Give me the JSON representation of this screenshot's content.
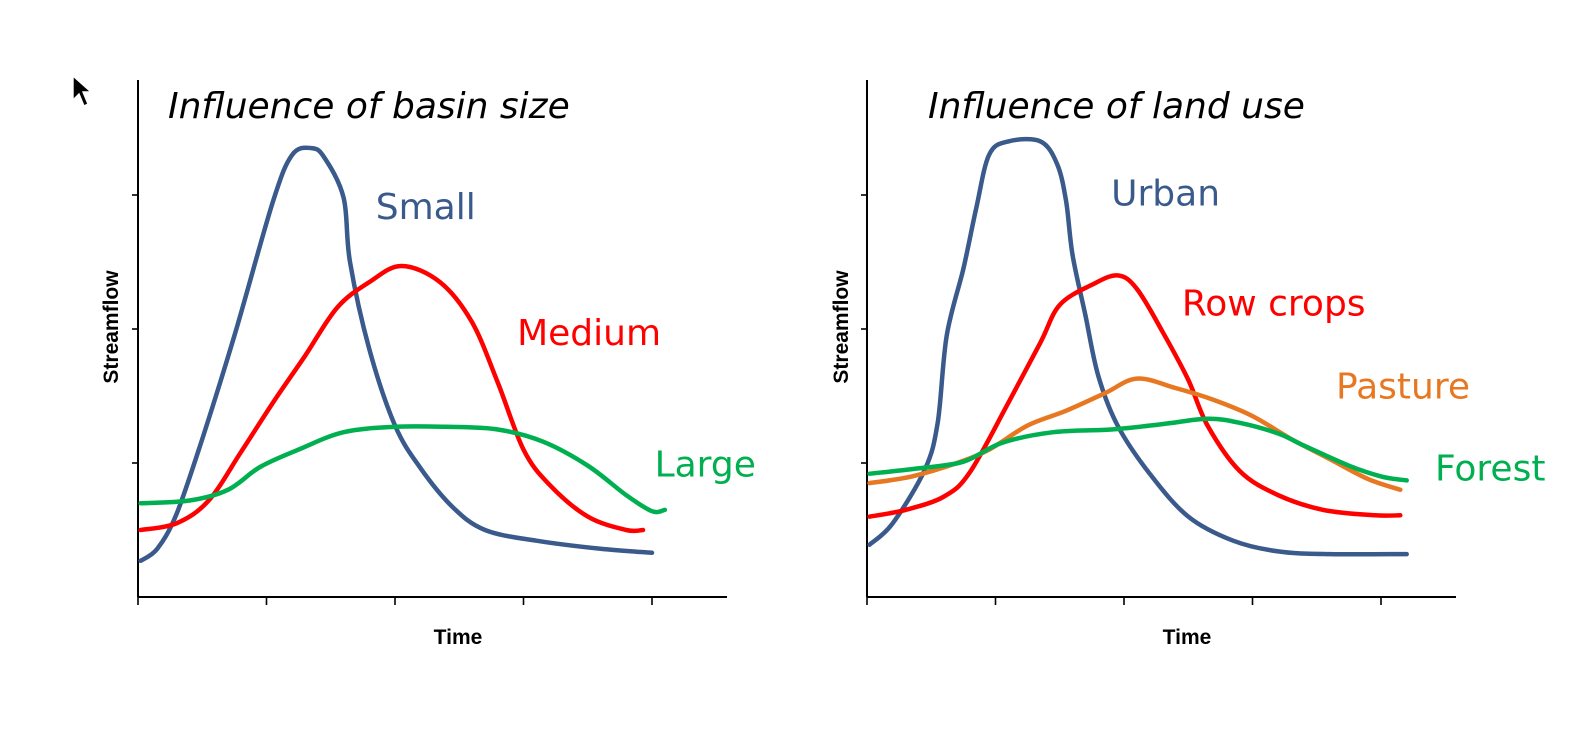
{
  "chart_data": [
    {
      "type": "line",
      "title": "Influence of basin size",
      "xlabel": "Time",
      "ylabel": "Streamflow",
      "xlim": [
        0,
        4.6
      ],
      "ylim": [
        0,
        3.85
      ],
      "grid": false,
      "legend": "inline labels beside curves",
      "x_ticks": [
        0,
        1,
        2,
        3,
        4
      ],
      "y_ticks": [
        1,
        2,
        3
      ],
      "series": [
        {
          "name": "Small",
          "color": "#3A5A8C",
          "label_at": [
            1.85,
            2.82
          ],
          "points": [
            [
              0.02,
              0.27
            ],
            [
              0.15,
              0.36
            ],
            [
              0.3,
              0.62
            ],
            [
              0.5,
              1.18
            ],
            [
              0.75,
              1.95
            ],
            [
              1.05,
              2.95
            ],
            [
              1.2,
              3.3
            ],
            [
              1.35,
              3.35
            ],
            [
              1.45,
              3.28
            ],
            [
              1.6,
              2.98
            ],
            [
              1.65,
              2.5
            ],
            [
              1.8,
              1.85
            ],
            [
              2.0,
              1.28
            ],
            [
              2.2,
              0.96
            ],
            [
              2.45,
              0.67
            ],
            [
              2.7,
              0.5
            ],
            [
              3.1,
              0.42
            ],
            [
              3.6,
              0.36
            ],
            [
              4.0,
              0.33
            ]
          ]
        },
        {
          "name": "Medium",
          "color": "#FF0000",
          "label_at": [
            2.95,
            1.88
          ],
          "points": [
            [
              0.02,
              0.5
            ],
            [
              0.3,
              0.55
            ],
            [
              0.55,
              0.72
            ],
            [
              0.8,
              1.08
            ],
            [
              1.05,
              1.45
            ],
            [
              1.3,
              1.8
            ],
            [
              1.55,
              2.16
            ],
            [
              1.8,
              2.35
            ],
            [
              2.05,
              2.47
            ],
            [
              2.35,
              2.35
            ],
            [
              2.6,
              2.05
            ],
            [
              2.8,
              1.6
            ],
            [
              3.0,
              1.1
            ],
            [
              3.2,
              0.84
            ],
            [
              3.5,
              0.6
            ],
            [
              3.8,
              0.5
            ],
            [
              3.93,
              0.5
            ]
          ]
        },
        {
          "name": "Large",
          "color": "#00B050",
          "label_at": [
            4.02,
            0.9
          ],
          "points": [
            [
              0.02,
              0.7
            ],
            [
              0.4,
              0.72
            ],
            [
              0.7,
              0.8
            ],
            [
              0.95,
              0.97
            ],
            [
              1.25,
              1.1
            ],
            [
              1.6,
              1.23
            ],
            [
              2.0,
              1.27
            ],
            [
              2.4,
              1.27
            ],
            [
              2.8,
              1.25
            ],
            [
              3.15,
              1.16
            ],
            [
              3.5,
              0.98
            ],
            [
              3.8,
              0.76
            ],
            [
              4.0,
              0.64
            ],
            [
              4.1,
              0.65
            ]
          ]
        }
      ]
    },
    {
      "type": "line",
      "title": "Influence of land use",
      "xlabel": "Time",
      "ylabel": "Streamflow",
      "xlim": [
        0,
        4.6
      ],
      "ylim": [
        0,
        3.85
      ],
      "grid": false,
      "legend": "inline labels beside curves",
      "x_ticks": [
        0,
        1,
        2,
        3,
        4
      ],
      "y_ticks": [
        1,
        2,
        3
      ],
      "series": [
        {
          "name": "Urban",
          "color": "#3A5A8C",
          "label_at": [
            1.9,
            2.92
          ],
          "points": [
            [
              0.02,
              0.39
            ],
            [
              0.2,
              0.55
            ],
            [
              0.45,
              0.95
            ],
            [
              0.55,
              1.3
            ],
            [
              0.62,
              1.95
            ],
            [
              0.75,
              2.45
            ],
            [
              0.85,
              2.9
            ],
            [
              0.95,
              3.3
            ],
            [
              1.1,
              3.4
            ],
            [
              1.35,
              3.4
            ],
            [
              1.48,
              3.23
            ],
            [
              1.55,
              2.95
            ],
            [
              1.6,
              2.55
            ],
            [
              1.7,
              2.1
            ],
            [
              1.8,
              1.65
            ],
            [
              1.95,
              1.28
            ],
            [
              2.2,
              0.92
            ],
            [
              2.5,
              0.6
            ],
            [
              2.85,
              0.42
            ],
            [
              3.2,
              0.34
            ],
            [
              3.6,
              0.32
            ],
            [
              4.2,
              0.32
            ]
          ]
        },
        {
          "name": "Row crops",
          "color": "#FF0000",
          "label_at": [
            2.45,
            2.1
          ],
          "points": [
            [
              0.02,
              0.6
            ],
            [
              0.3,
              0.65
            ],
            [
              0.6,
              0.75
            ],
            [
              0.8,
              0.93
            ],
            [
              1.1,
              1.45
            ],
            [
              1.35,
              1.9
            ],
            [
              1.5,
              2.18
            ],
            [
              1.75,
              2.33
            ],
            [
              1.95,
              2.4
            ],
            [
              2.1,
              2.3
            ],
            [
              2.3,
              1.98
            ],
            [
              2.5,
              1.62
            ],
            [
              2.65,
              1.28
            ],
            [
              2.9,
              0.94
            ],
            [
              3.2,
              0.76
            ],
            [
              3.55,
              0.65
            ],
            [
              3.95,
              0.61
            ],
            [
              4.15,
              0.61
            ]
          ]
        },
        {
          "name": "Pasture",
          "color": "#E87722",
          "label_at": [
            3.65,
            1.48
          ],
          "points": [
            [
              0.02,
              0.85
            ],
            [
              0.35,
              0.9
            ],
            [
              0.7,
              1.0
            ],
            [
              0.95,
              1.1
            ],
            [
              1.25,
              1.28
            ],
            [
              1.55,
              1.39
            ],
            [
              1.85,
              1.52
            ],
            [
              2.1,
              1.63
            ],
            [
              2.4,
              1.56
            ],
            [
              2.7,
              1.47
            ],
            [
              3.0,
              1.35
            ],
            [
              3.3,
              1.18
            ],
            [
              3.6,
              1.03
            ],
            [
              3.9,
              0.88
            ],
            [
              4.15,
              0.8
            ]
          ]
        },
        {
          "name": "Forest",
          "color": "#00B050",
          "label_at": [
            4.42,
            0.87
          ],
          "points": [
            [
              0.02,
              0.92
            ],
            [
              0.4,
              0.96
            ],
            [
              0.75,
              1.01
            ],
            [
              1.05,
              1.15
            ],
            [
              1.45,
              1.23
            ],
            [
              1.9,
              1.25
            ],
            [
              2.3,
              1.29
            ],
            [
              2.65,
              1.33
            ],
            [
              2.9,
              1.3
            ],
            [
              3.2,
              1.22
            ],
            [
              3.4,
              1.13
            ],
            [
              3.75,
              0.98
            ],
            [
              4.0,
              0.9
            ],
            [
              4.2,
              0.87
            ]
          ]
        }
      ]
    }
  ]
}
